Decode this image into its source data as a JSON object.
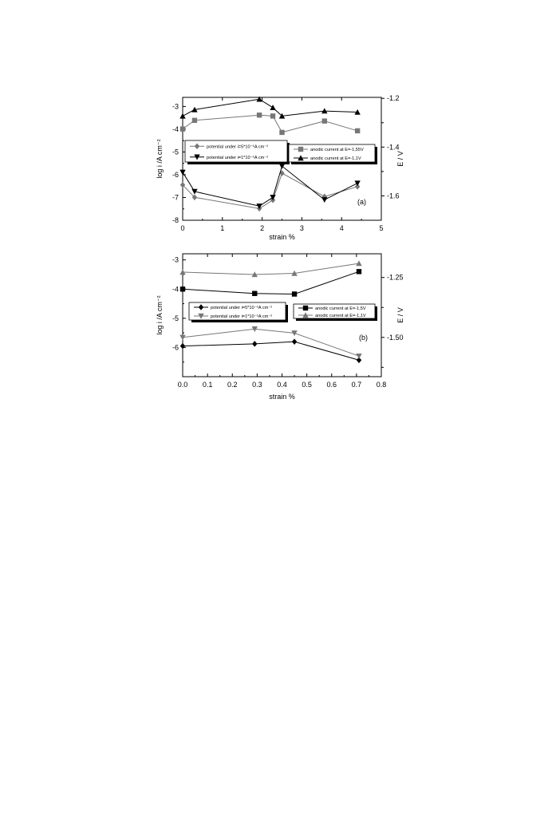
{
  "chart_data": [
    {
      "type": "line",
      "panel_label": "(a)",
      "xlabel": "strain %",
      "ylabel": "log i /A cm⁻²",
      "y2label": "E / V",
      "xlim": [
        0,
        5
      ],
      "ylim": [
        -8,
        -2.6
      ],
      "y2lim": [
        -1.7,
        -1.196
      ],
      "xticks": [
        "0",
        "1",
        "2",
        "3",
        "4",
        "5"
      ],
      "xtick_values": [
        0,
        1,
        2,
        3,
        4,
        5
      ],
      "yticks": [
        "-3",
        "-4",
        "-5",
        "-6",
        "-7",
        "-8"
      ],
      "ytick_values": [
        -3,
        -4,
        -5,
        -6,
        -7,
        -8
      ],
      "y2ticks": [
        "-1.2",
        "-1.4",
        "-1.6"
      ],
      "y2tick_values": [
        -1.2,
        -1.4,
        -1.6
      ],
      "y2minor_values": [
        -1.3,
        -1.5
      ],
      "grid": false,
      "series": [
        {
          "name": "potential under i=5*10⁻⁶A cm⁻²",
          "axis": "right",
          "marker": "diamond",
          "color": "#777777",
          "x": [
            0,
            0.3,
            1.93,
            2.27,
            2.5,
            3.57,
            4.4
          ],
          "y": [
            -1.555,
            -1.606,
            -1.652,
            -1.617,
            -1.507,
            -1.603,
            -1.562
          ]
        },
        {
          "name": "potential under i=1*10⁻⁶A cm⁻²",
          "axis": "right",
          "marker": "triangle-down",
          "color": "#000000",
          "x": [
            0,
            0.3,
            1.93,
            2.27,
            2.5,
            3.57,
            4.4
          ],
          "y": [
            -1.503,
            -1.582,
            -1.642,
            -1.606,
            -1.478,
            -1.616,
            -1.548
          ]
        },
        {
          "name": "anodic current at E=-1,55V",
          "axis": "left",
          "marker": "square",
          "color": "#777777",
          "x": [
            0,
            0.3,
            1.93,
            2.27,
            2.5,
            3.57,
            4.4
          ],
          "y": [
            -3.99,
            -3.61,
            -3.38,
            -3.42,
            -4.14,
            -3.64,
            -4.07
          ]
        },
        {
          "name": "anodic current at E=-1,1V",
          "axis": "left",
          "marker": "triangle-up",
          "color": "#000000",
          "x": [
            0,
            0.3,
            1.93,
            2.27,
            2.5,
            3.57,
            4.4
          ],
          "y": [
            -3.42,
            -3.14,
            -2.68,
            -3.05,
            -3.42,
            -3.2,
            -3.25
          ]
        }
      ]
    },
    {
      "type": "line",
      "panel_label": "(b)",
      "xlabel": "strain %",
      "ylabel": "log i /A cm⁻²",
      "y2label": "E / V",
      "xlim": [
        0,
        0.8
      ],
      "ylim": [
        -7.0,
        -2.79
      ],
      "y2lim": [
        -1.664,
        -1.151
      ],
      "xticks": [
        "0.0",
        "0.1",
        "0.2",
        "0.3",
        "0.4",
        "0.5",
        "0.6",
        "0.7",
        "0.8"
      ],
      "xtick_values": [
        0,
        0.1,
        0.2,
        0.3,
        0.4,
        0.5,
        0.6,
        0.7,
        0.8
      ],
      "yticks": [
        "-3",
        "-4",
        "-5",
        "-6"
      ],
      "ytick_values": [
        -3,
        -4,
        -5,
        -6
      ],
      "y2ticks": [
        "-1.25",
        "-1.50"
      ],
      "y2tick_values": [
        -1.25,
        -1.5
      ],
      "y2minor_values": [
        -1.375,
        -1.625
      ],
      "grid": false,
      "series": [
        {
          "name": "potential under i=5*10⁻⁶A cm⁻²",
          "axis": "right",
          "marker": "diamond",
          "color": "#000000",
          "x": [
            0,
            0.29,
            0.45,
            0.71
          ],
          "y": [
            -1.536,
            -1.527,
            -1.518,
            -1.595
          ]
        },
        {
          "name": "potential under i=1*10⁻⁶A cm⁻²",
          "axis": "right",
          "marker": "triangle-down",
          "color": "#777777",
          "x": [
            0,
            0.29,
            0.45,
            0.71
          ],
          "y": [
            -1.5,
            -1.465,
            -1.482,
            -1.578
          ]
        },
        {
          "name": "anodic current at E=-1,5V",
          "axis": "left",
          "marker": "square",
          "color": "#000000",
          "x": [
            0,
            0.29,
            0.45,
            0.71
          ],
          "y": [
            -4.0,
            -4.15,
            -4.17,
            -3.4
          ]
        },
        {
          "name": "anodic current at E=-1,1V",
          "axis": "left",
          "marker": "triangle-up",
          "color": "#777777",
          "x": [
            0,
            0.29,
            0.45,
            0.71
          ],
          "y": [
            -3.42,
            -3.5,
            -3.46,
            -3.12
          ]
        }
      ]
    }
  ]
}
